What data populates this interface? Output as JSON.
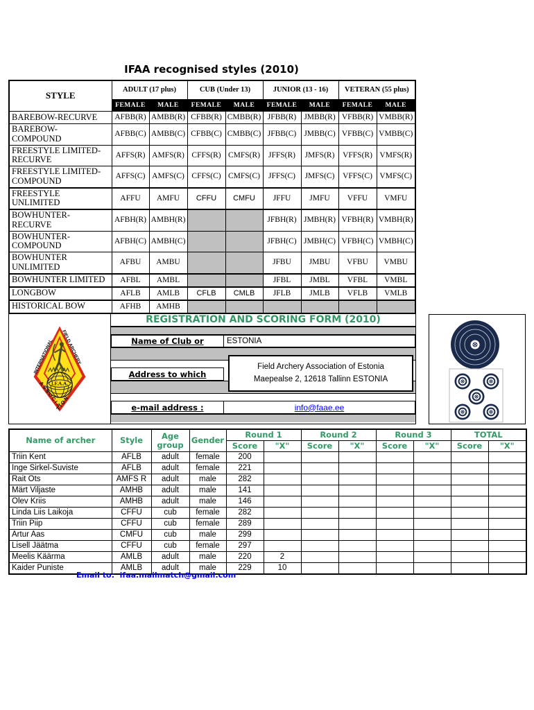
{
  "page": {
    "title": "IFAA recognised styles (2010)"
  },
  "colors": {
    "green": "#339966",
    "gray_band": "#C0C0C0",
    "navy": "#1B2A4A",
    "link_blue": "#0000FF",
    "logo_red": "#D92B1C",
    "logo_yellow": "#FFE01A"
  },
  "styles_table": {
    "corner_header": "STYLE",
    "groups": [
      "ADULT (17 plus)",
      "CUB (Under 13)",
      "JUNIOR (13 - 16)",
      "VETERAN (55 plus)"
    ],
    "sub_headers": [
      "FEMALE",
      "MALE"
    ],
    "rows": [
      {
        "name": "BAREBOW-RECURVE",
        "cells": [
          {
            "v": "AFBB(R)"
          },
          {
            "v": "AMBB(R)"
          },
          {
            "v": "CFBB(R)"
          },
          {
            "v": "CMBB(R)"
          },
          {
            "v": "JFBB(R)"
          },
          {
            "v": "JMBB(R)"
          },
          {
            "v": "VFBB(R)"
          },
          {
            "v": "VMBB(R)"
          }
        ]
      },
      {
        "name": "BAREBOW-\nCOMPOUND",
        "cells": [
          {
            "v": "AFBB(C)"
          },
          {
            "v": "AMBB(C)"
          },
          {
            "v": "CFBB(C)"
          },
          {
            "v": "CMBB(C)"
          },
          {
            "v": "JFBB(C)"
          },
          {
            "v": "JMBB(C)"
          },
          {
            "v": "VFBB(C)"
          },
          {
            "v": "VMBB(C)"
          }
        ]
      },
      {
        "name": "FREESTYLE LIMITED-\nRECURVE",
        "cells": [
          {
            "v": "AFFS(R)"
          },
          {
            "v": "AMFS(R)"
          },
          {
            "v": "CFFS(R)"
          },
          {
            "v": "CMFS(R)"
          },
          {
            "v": "JFFS(R)"
          },
          {
            "v": "JMFS(R)"
          },
          {
            "v": "VFFS(R)"
          },
          {
            "v": "VMFS(R)"
          }
        ]
      },
      {
        "name": "FREESTYLE LIMITED-\nCOMPOUND",
        "cells": [
          {
            "v": "AFFS(C)"
          },
          {
            "v": "AMFS(C)"
          },
          {
            "v": "CFFS(C)"
          },
          {
            "v": "CMFS(C)"
          },
          {
            "v": "JFFS(C)"
          },
          {
            "v": "JMFS(C)"
          },
          {
            "v": "VFFS(C)"
          },
          {
            "v": "VMFS(C)"
          }
        ]
      },
      {
        "name": "FREESTYLE UNLIMITED",
        "thick": true,
        "cells": [
          {
            "v": "AFFU"
          },
          {
            "v": "AMFU"
          },
          {
            "v": "CFFU",
            "sans": true
          },
          {
            "v": "CMFU",
            "sans": true
          },
          {
            "v": "JFFU"
          },
          {
            "v": "JMFU"
          },
          {
            "v": "VFFU"
          },
          {
            "v": "VMFU"
          }
        ]
      },
      {
        "name": "BOWHUNTER-\nRECURVE",
        "thick": true,
        "cells": [
          {
            "v": "AFBH(R)"
          },
          {
            "v": "AMBH(R)"
          },
          {
            "v": "",
            "gray": true
          },
          {
            "v": "",
            "gray": true
          },
          {
            "v": "JFBH(R)"
          },
          {
            "v": "JMBH(R)"
          },
          {
            "v": "VFBH(R)"
          },
          {
            "v": "VMBH(R)"
          }
        ]
      },
      {
        "name": "BOWHUNTER-\nCOMPOUND",
        "cells": [
          {
            "v": "AFBH(C)"
          },
          {
            "v": "AMBH(C)"
          },
          {
            "v": "",
            "gray": true
          },
          {
            "v": "",
            "gray": true
          },
          {
            "v": "JFBH(C)"
          },
          {
            "v": "JMBH(C)"
          },
          {
            "v": "VFBH(C)"
          },
          {
            "v": "VMBH(C)"
          }
        ]
      },
      {
        "name": "BOWHUNTER\nUNLIMITED",
        "cells": [
          {
            "v": "AFBU"
          },
          {
            "v": "AMBU"
          },
          {
            "v": "",
            "gray": true
          },
          {
            "v": "",
            "gray": true
          },
          {
            "v": "JFBU"
          },
          {
            "v": "JMBU"
          },
          {
            "v": "VFBU"
          },
          {
            "v": "VMBU"
          }
        ]
      },
      {
        "name": "BOWHUNTER LIMITED",
        "thick": true,
        "cells": [
          {
            "v": "AFBL"
          },
          {
            "v": "AMBL"
          },
          {
            "v": "",
            "gray": true
          },
          {
            "v": "",
            "gray": true
          },
          {
            "v": "JFBL"
          },
          {
            "v": "JMBL"
          },
          {
            "v": "VFBL"
          },
          {
            "v": "VMBL"
          }
        ]
      },
      {
        "name": "LONGBOW",
        "thick": true,
        "cells": [
          {
            "v": "AFLB"
          },
          {
            "v": "AMLB"
          },
          {
            "v": "CFLB",
            "sans": true
          },
          {
            "v": "CMLB",
            "sans": true
          },
          {
            "v": "JFLB"
          },
          {
            "v": "JMLB"
          },
          {
            "v": "VFLB"
          },
          {
            "v": "VMLB"
          }
        ]
      },
      {
        "name": "HISTORICAL BOW",
        "thick": true,
        "cells": [
          {
            "v": "AFHB"
          },
          {
            "v": "AMHB"
          },
          {
            "v": "",
            "gray": true
          },
          {
            "v": "",
            "gray": true
          },
          {
            "v": "",
            "gray": true
          },
          {
            "v": "",
            "gray": true
          },
          {
            "v": "",
            "gray": true
          },
          {
            "v": "",
            "gray": true
          }
        ]
      }
    ]
  },
  "logo": {
    "text_left": "INTERNATIONAL",
    "text_right": "FIELD ARCHERY",
    "text_bottom": "ASSOCIATION",
    "text_globe": "I.F.A.A."
  },
  "registration": {
    "title": "REGISTRATION AND SCORING FORM (2010)",
    "club_label": "Name of Club or ",
    "club_value": "ESTONIA",
    "address_label": "Address to which ",
    "address_line1": "Field Archery Association of Estonia",
    "address_line2": "Maepealse 2, 12618 Tallinn ESTONIA",
    "email_label": "e-mail address :",
    "email_value": "info@faae.ee"
  },
  "scoring_table": {
    "headers": {
      "name": "Name of archer",
      "style": "Style",
      "age_group": "Age group",
      "gender": "Gender",
      "rounds": [
        "Round 1",
        "Round 2",
        "Round 3",
        "TOTAL"
      ],
      "score": "Score",
      "x": "\"X\""
    },
    "rows": [
      {
        "name": "Triin Kent",
        "style": "AFLB",
        "age": "adult",
        "gender": "female",
        "scores": [
          "200",
          "",
          "",
          "",
          "",
          "",
          "",
          ""
        ]
      },
      {
        "name": "Inge Sirkel-Suviste",
        "style": "AFLB",
        "age": "adult",
        "gender": "female",
        "scores": [
          "221",
          "",
          "",
          "",
          "",
          "",
          "",
          ""
        ]
      },
      {
        "name": "Rait Ots",
        "style": "AMFS R",
        "age": "adult",
        "gender": "male",
        "scores": [
          "282",
          "",
          "",
          "",
          "",
          "",
          "",
          ""
        ]
      },
      {
        "name": "Märt Viljaste",
        "style": "AMHB",
        "age": "adult",
        "gender": "male",
        "scores": [
          "141",
          "",
          "",
          "",
          "",
          "",
          "",
          ""
        ]
      },
      {
        "name": "Olev Kriis",
        "style": "AMHB",
        "age": "adult",
        "gender": "male",
        "scores": [
          "146",
          "",
          "",
          "",
          "",
          "",
          "",
          ""
        ]
      },
      {
        "name": "Linda Liis Laikoja",
        "style": "CFFU",
        "age": "cub",
        "gender": "female",
        "scores": [
          "282",
          "",
          "",
          "",
          "",
          "",
          "",
          ""
        ]
      },
      {
        "name": "Triin Piip",
        "style": "CFFU",
        "age": "cub",
        "gender": "female",
        "scores": [
          "289",
          "",
          "",
          "",
          "",
          "",
          "",
          ""
        ]
      },
      {
        "name": "Artur Aas",
        "style": "CMFU",
        "age": "cub",
        "gender": "male",
        "scores": [
          "299",
          "",
          "",
          "",
          "",
          "",
          "",
          ""
        ]
      },
      {
        "name": "Lisell Jäätma",
        "style": "CFFU",
        "age": "cub",
        "gender": "female",
        "scores": [
          "297",
          "",
          "",
          "",
          "",
          "",
          "",
          ""
        ]
      },
      {
        "name": "Meelis Käärma",
        "style": "AMLB",
        "age": "adult",
        "gender": "male",
        "scores": [
          "220",
          "2",
          "",
          "",
          "",
          "",
          "",
          ""
        ]
      },
      {
        "name": "Kaider Puniste",
        "style": "AMLB",
        "age": "adult",
        "gender": "male",
        "scores": [
          "229",
          "10",
          "",
          "",
          "",
          "",
          "",
          ""
        ]
      }
    ]
  },
  "footer": {
    "label": "Email to:",
    "email": "ifaa.mailmatch@gmail.com"
  }
}
